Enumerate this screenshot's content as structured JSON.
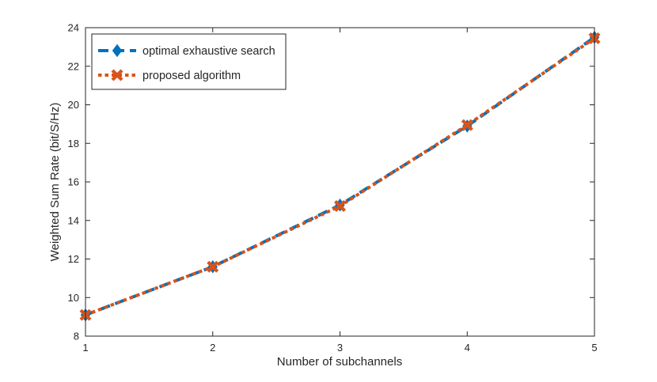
{
  "chart_data": {
    "type": "line",
    "title": "",
    "xlabel": "Number of subchannels",
    "ylabel": "Weighted Sum Rate (bit/S/Hz)",
    "x": [
      1,
      2,
      3,
      4,
      5
    ],
    "xlim": [
      1,
      5
    ],
    "ylim": [
      8,
      24
    ],
    "xticks": [
      1,
      2,
      3,
      4,
      5
    ],
    "yticks": [
      8,
      10,
      12,
      14,
      16,
      18,
      20,
      22,
      24
    ],
    "grid": false,
    "legend_position": "top-left",
    "series": [
      {
        "name": "optimal exhaustive search",
        "values": [
          9.1,
          11.6,
          14.8,
          18.9,
          23.5
        ],
        "color": "#0072BD",
        "line_style": "dashed",
        "marker": "diamond"
      },
      {
        "name": "proposed algorithm",
        "values": [
          9.1,
          11.6,
          14.75,
          18.95,
          23.45
        ],
        "color": "#D95319",
        "line_style": "dotted",
        "marker": "x"
      }
    ]
  }
}
